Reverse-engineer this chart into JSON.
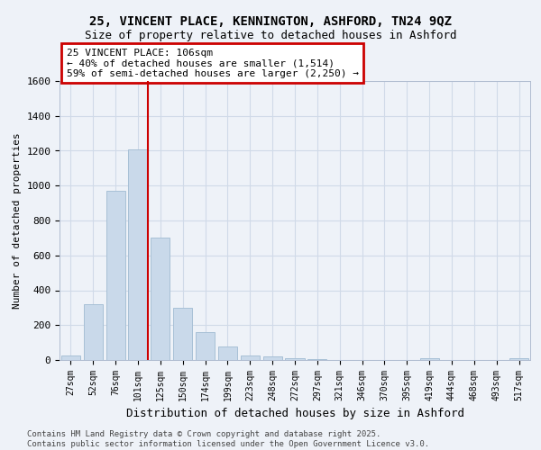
{
  "title_line1": "25, VINCENT PLACE, KENNINGTON, ASHFORD, TN24 9QZ",
  "title_line2": "Size of property relative to detached houses in Ashford",
  "xlabel": "Distribution of detached houses by size in Ashford",
  "ylabel": "Number of detached properties",
  "categories": [
    "27sqm",
    "52sqm",
    "76sqm",
    "101sqm",
    "125sqm",
    "150sqm",
    "174sqm",
    "199sqm",
    "223sqm",
    "248sqm",
    "272sqm",
    "297sqm",
    "321sqm",
    "346sqm",
    "370sqm",
    "395sqm",
    "419sqm",
    "444sqm",
    "468sqm",
    "493sqm",
    "517sqm"
  ],
  "values": [
    25,
    320,
    970,
    1210,
    700,
    300,
    160,
    75,
    25,
    20,
    10,
    5,
    2,
    1,
    1,
    0,
    8,
    0,
    0,
    0,
    8
  ],
  "bar_color": "#c9d9ea",
  "bar_edge_color": "#a8c0d6",
  "vline_index": 3,
  "annotation_title": "25 VINCENT PLACE: 106sqm",
  "annotation_line1": "← 40% of detached houses are smaller (1,514)",
  "annotation_line2": "59% of semi-detached houses are larger (2,250) →",
  "annotation_box_color": "#ffffff",
  "annotation_box_edge": "#cc0000",
  "vline_color": "#cc0000",
  "ylim": [
    0,
    1600
  ],
  "yticks": [
    0,
    200,
    400,
    600,
    800,
    1000,
    1200,
    1400,
    1600
  ],
  "grid_color": "#d0dae8",
  "background_color": "#eef2f8",
  "footer_line1": "Contains HM Land Registry data © Crown copyright and database right 2025.",
  "footer_line2": "Contains public sector information licensed under the Open Government Licence v3.0."
}
